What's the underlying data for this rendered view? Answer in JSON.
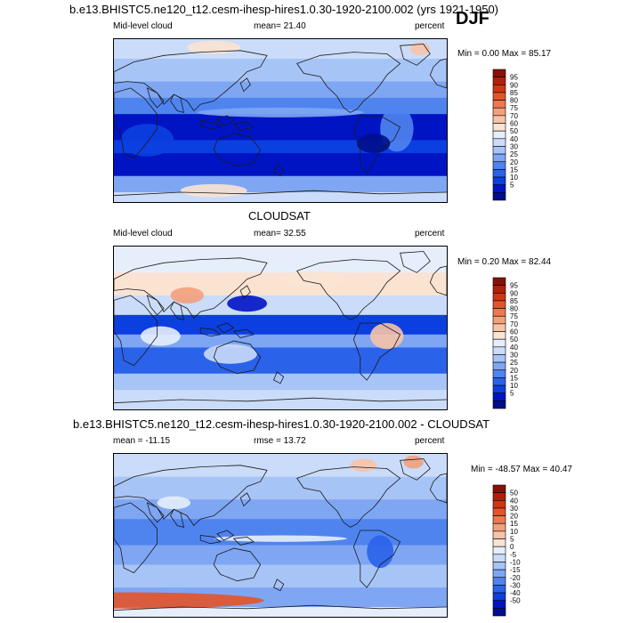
{
  "colors": {
    "abs_scale": [
      "#000e8c",
      "#0014c4",
      "#0b3fe0",
      "#2a62ea",
      "#4f84ef",
      "#7ea6f3",
      "#a7c4f7",
      "#cadcf9",
      "#e6eefb",
      "#fbe3d2",
      "#f7c3a8",
      "#f2a07c",
      "#ec7950",
      "#e4542b",
      "#d03514",
      "#b0200a",
      "#8a1006"
    ],
    "diff_scale": [
      "#000e8c",
      "#0014c4",
      "#0b3fe0",
      "#2a62ea",
      "#4f84ef",
      "#7ea6f3",
      "#a7c4f7",
      "#cadcf9",
      "#e6eefb",
      "#fbe3d2",
      "#f7c3a8",
      "#f2a07c",
      "#ec7950",
      "#e4542b",
      "#d03514",
      "#b0200a",
      "#8a1006"
    ],
    "coast": "#1a1a1a"
  },
  "chart_data": [
    {
      "type": "heatmap",
      "title": "b.e13.BHISTC5.ne120_t12.cesm-ihesp-hires1.0.30-1920-2100.002 (yrs 1921-1950)",
      "season": "DJF",
      "left_label": "Mid-level cloud",
      "center_label": "mean=  21.40",
      "units": "percent",
      "minmax": "Min =   0.00 Max =  85.17",
      "mean": 21.4,
      "min": 0.0,
      "max": 85.17,
      "colorbar_ticks": [
        "95",
        "90",
        "85",
        "80",
        "75",
        "70",
        "60",
        "50",
        "40",
        "30",
        "25",
        "20",
        "15",
        "10",
        "5"
      ]
    },
    {
      "type": "heatmap",
      "title": "CLOUDSAT",
      "left_label": "Mid-level cloud",
      "center_label": "mean=  32.55",
      "units": "percent",
      "minmax": "Min =   0.20 Max =  82.44",
      "mean": 32.55,
      "min": 0.2,
      "max": 82.44,
      "colorbar_ticks": [
        "95",
        "90",
        "85",
        "80",
        "75",
        "70",
        "60",
        "50",
        "40",
        "30",
        "25",
        "20",
        "15",
        "10",
        "5"
      ]
    },
    {
      "type": "heatmap",
      "title": "b.e13.BHISTC5.ne120_t12.cesm-ihesp-hires1.0.30-1920-2100.002 - CLOUDSAT",
      "left_label": "mean = -11.15",
      "center_label": "rmse =  13.72",
      "units": "percent",
      "minmax": "Min = -48.57 Max =  40.47",
      "mean": -11.15,
      "rmse": 13.72,
      "min": -48.57,
      "max": 40.47,
      "colorbar_ticks": [
        "50",
        "40",
        "30",
        "20",
        "15",
        "10",
        "5",
        "0",
        "-5",
        "-10",
        "-15",
        "-20",
        "-30",
        "-40",
        "-50"
      ]
    }
  ]
}
